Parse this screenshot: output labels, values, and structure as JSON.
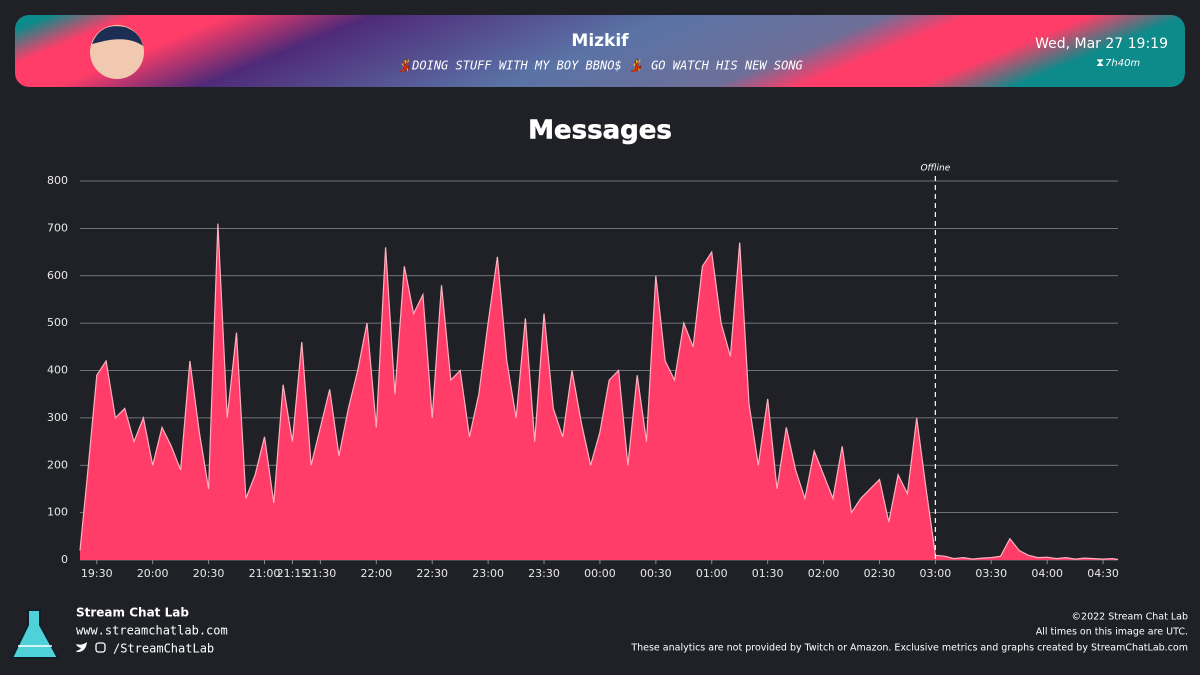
{
  "header": {
    "name": "Mizkif",
    "stream_title": "💃DOING STUFF WITH MY BOY BBNO$ 💃 GO WATCH HIS NEW SONG",
    "date": "Wed, Mar 27 19:19",
    "duration": "7h40m"
  },
  "chart_data": {
    "type": "area",
    "title": "Messages",
    "x": [
      21,
      25,
      30,
      35,
      40,
      45,
      50,
      55,
      60,
      65,
      70,
      75,
      80,
      85,
      90,
      95,
      100,
      105,
      110,
      115,
      120,
      125,
      130,
      135,
      140,
      145,
      150,
      155,
      160,
      165,
      170,
      175,
      180,
      185,
      190,
      195,
      200,
      205,
      210,
      215,
      220,
      225,
      230,
      235,
      240,
      245,
      250,
      255,
      260,
      265,
      270,
      275,
      280,
      285,
      290,
      295,
      300,
      305,
      310,
      315,
      320,
      325,
      330,
      335,
      340,
      345,
      350,
      355,
      360,
      365,
      370,
      375,
      380,
      385,
      390,
      395,
      400,
      405,
      410,
      415,
      420,
      425,
      430,
      435,
      440,
      445,
      450,
      455,
      460,
      465,
      470,
      475,
      480,
      485,
      490,
      495,
      500,
      505,
      510,
      515,
      520,
      525,
      530,
      535,
      540,
      545,
      550,
      555,
      560,
      565,
      570,
      575,
      578
    ],
    "values": [
      20,
      180,
      390,
      420,
      300,
      320,
      250,
      300,
      200,
      280,
      240,
      190,
      420,
      270,
      150,
      710,
      300,
      480,
      130,
      180,
      260,
      120,
      370,
      250,
      460,
      200,
      280,
      360,
      220,
      320,
      400,
      500,
      280,
      660,
      350,
      620,
      520,
      560,
      300,
      580,
      380,
      400,
      260,
      350,
      500,
      640,
      420,
      300,
      510,
      250,
      520,
      320,
      260,
      400,
      290,
      200,
      270,
      380,
      400,
      200,
      390,
      250,
      600,
      420,
      380,
      500,
      450,
      620,
      650,
      500,
      430,
      670,
      330,
      200,
      340,
      150,
      280,
      190,
      130,
      230,
      180,
      130,
      240,
      100,
      130,
      150,
      170,
      80,
      180,
      140,
      300,
      150,
      10,
      8,
      3,
      5,
      2,
      4,
      5,
      8,
      45,
      20,
      10,
      5,
      6,
      3,
      5,
      2,
      4,
      3,
      2,
      3,
      1
    ],
    "color": "#ff3d68",
    "line_color": "#ffb0c0",
    "xlim": [
      21,
      578
    ],
    "xticks": [
      {
        "value": 30,
        "label": "19:30"
      },
      {
        "value": 60,
        "label": "20:00"
      },
      {
        "value": 90,
        "label": "20:30"
      },
      {
        "value": 120,
        "label": "21:00"
      },
      {
        "value": 135,
        "label": "21:15"
      },
      {
        "value": 150,
        "label": "21:30"
      },
      {
        "value": 180,
        "label": "22:00"
      },
      {
        "value": 210,
        "label": "22:30"
      },
      {
        "value": 240,
        "label": "23:00"
      },
      {
        "value": 270,
        "label": "23:30"
      },
      {
        "value": 300,
        "label": "00:00"
      },
      {
        "value": 330,
        "label": "00:30"
      },
      {
        "value": 360,
        "label": "01:00"
      },
      {
        "value": 390,
        "label": "01:30"
      },
      {
        "value": 420,
        "label": "02:00"
      },
      {
        "value": 450,
        "label": "02:30"
      },
      {
        "value": 480,
        "label": "03:00"
      },
      {
        "value": 510,
        "label": "03:30"
      },
      {
        "value": 540,
        "label": "04:00"
      },
      {
        "value": 570,
        "label": "04:30"
      }
    ],
    "ylim": [
      0,
      800
    ],
    "yticks": [
      0,
      100,
      200,
      300,
      400,
      500,
      600,
      700,
      800
    ],
    "grid": true,
    "annotations": [
      {
        "x": 480,
        "label": "Offline"
      }
    ]
  },
  "footer": {
    "brand": "Stream Chat Lab",
    "url": "www.streamchatlab.com",
    "handle": "/StreamChatLab",
    "copyright": "©2022 Stream Chat Lab",
    "timezone_note": "All times on this image are UTC.",
    "disclaimer": "These analytics are not provided by Twitch or Amazon. Exclusive metrics and graphs created by StreamChatLab.com"
  }
}
